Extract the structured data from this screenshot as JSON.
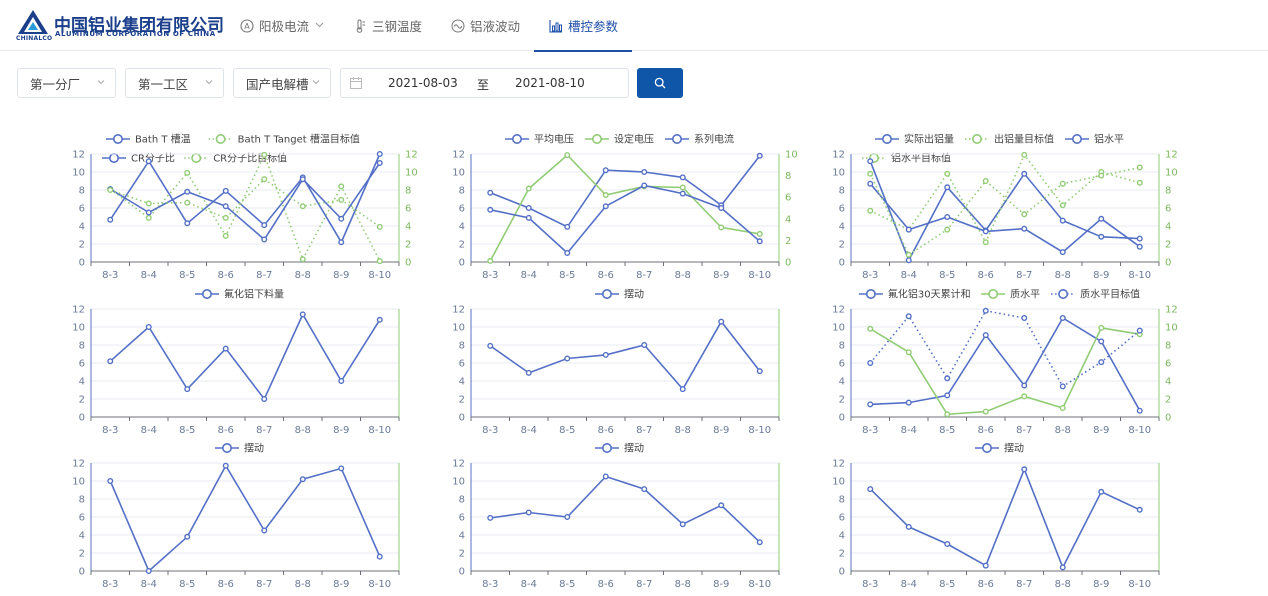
{
  "brand": {
    "name_cn": "中国铝业集团有限公司",
    "name_en": "ALUMINUM CORPORATION OF CHINA",
    "mark_text": "CHINALCO"
  },
  "nav": {
    "tabs": [
      {
        "label": "阳极电流",
        "icon": "anode-icon",
        "dropdown": true,
        "active": false
      },
      {
        "label": "三钢温度",
        "icon": "thermometer-icon",
        "dropdown": false,
        "active": false
      },
      {
        "label": "铝液波动",
        "icon": "wave-icon",
        "dropdown": false,
        "active": false
      },
      {
        "label": "槽控参数",
        "icon": "bar-chart-icon",
        "dropdown": false,
        "active": true
      }
    ]
  },
  "filters": {
    "factory": "第一分厂",
    "workshop": "第一工区",
    "cell": "国产电解槽",
    "date_start": "2021-08-03",
    "date_sep": "至",
    "date_end": "2021-08-10"
  },
  "colors": {
    "primary": "#1e4fa8",
    "series_blue": "#5470c6",
    "series_green": "#91cc75",
    "button": "#0f55a8"
  },
  "chart_data": [
    {
      "type": "line",
      "categories": [
        "8-3",
        "8-4",
        "8-5",
        "8-6",
        "8-7",
        "8-8",
        "8-9",
        "8-10"
      ],
      "ylim_left": [
        0,
        12
      ],
      "ylim_right": [
        0,
        12
      ],
      "yticks_left": [
        "0",
        "2",
        "4",
        "6",
        "8",
        "10",
        "12"
      ],
      "yticks_right": [
        "0",
        "2",
        "4",
        "6",
        "8",
        "10",
        "12"
      ],
      "series": [
        {
          "name": "Bath T 槽温",
          "axis": "left",
          "style": "solid",
          "color": "blue",
          "values": [
            4.7,
            11.2,
            4.3,
            7.9,
            4.1,
            9.4,
            2.2,
            12.0
          ]
        },
        {
          "name": "Bath T Tanget 槽温目标值",
          "axis": "right",
          "style": "dotted",
          "color": "green",
          "values": [
            8.1,
            4.9,
            9.9,
            2.9,
            11.9,
            0.3,
            8.4,
            0.1
          ]
        },
        {
          "name": "CR分子比",
          "axis": "left",
          "style": "solid",
          "color": "blue",
          "values": [
            8.1,
            5.5,
            7.8,
            6.2,
            2.5,
            9.2,
            4.8,
            11.0
          ]
        },
        {
          "name": "CR分子比目标值",
          "axis": "right",
          "style": "dotted",
          "color": "green",
          "values": [
            8.0,
            6.5,
            6.6,
            4.9,
            9.2,
            6.2,
            6.9,
            3.9
          ]
        }
      ]
    },
    {
      "type": "line",
      "categories": [
        "8-3",
        "8-4",
        "8-5",
        "8-6",
        "8-7",
        "8-8",
        "8-9",
        "8-10"
      ],
      "ylim_left": [
        0,
        12
      ],
      "ylim_right": [
        0,
        10
      ],
      "yticks_left": [
        "0",
        "2",
        "4",
        "6",
        "8",
        "10",
        "12"
      ],
      "yticks_right": [
        "0",
        "2",
        "4",
        "6",
        "8",
        "10"
      ],
      "series": [
        {
          "name": "平均电压",
          "axis": "left",
          "style": "solid",
          "color": "blue",
          "values": [
            7.7,
            6.0,
            3.9,
            10.2,
            10.0,
            9.4,
            6.3,
            11.8
          ]
        },
        {
          "name": "设定电压",
          "axis": "right",
          "style": "solid",
          "color": "green",
          "values": [
            0.1,
            6.8,
            9.9,
            6.2,
            7.0,
            6.9,
            3.2,
            2.6
          ]
        },
        {
          "name": "系列电流",
          "axis": "left",
          "style": "solid",
          "color": "blue",
          "values": [
            5.8,
            4.9,
            1.0,
            6.2,
            8.5,
            7.6,
            6.0,
            2.3
          ]
        }
      ]
    },
    {
      "type": "line",
      "categories": [
        "8-3",
        "8-4",
        "8-5",
        "8-6",
        "8-7",
        "8-8",
        "8-9",
        "8-10"
      ],
      "ylim_left": [
        0,
        12
      ],
      "ylim_right": [
        0,
        12
      ],
      "yticks_left": [
        "0",
        "2",
        "4",
        "6",
        "8",
        "10",
        "12"
      ],
      "yticks_right": [
        "0",
        "2",
        "4",
        "6",
        "8",
        "10",
        "12"
      ],
      "series": [
        {
          "name": "实际出铝量",
          "axis": "left",
          "style": "solid",
          "color": "blue",
          "values": [
            11.2,
            0.2,
            8.3,
            3.5,
            9.8,
            4.6,
            2.8,
            2.6
          ]
        },
        {
          "name": "出铝量目标值",
          "axis": "right",
          "style": "dotted",
          "color": "green",
          "values": [
            5.7,
            3.6,
            9.8,
            2.2,
            11.9,
            6.3,
            10.0,
            8.8
          ]
        },
        {
          "name": "铝水平",
          "axis": "left",
          "style": "solid",
          "color": "blue",
          "values": [
            8.7,
            3.6,
            5.0,
            3.4,
            3.7,
            1.1,
            4.8,
            1.7
          ]
        },
        {
          "name": "铝水平目标值",
          "axis": "right",
          "style": "dotted",
          "color": "green",
          "values": [
            9.8,
            0.8,
            3.6,
            9.0,
            5.3,
            8.7,
            9.6,
            10.5
          ]
        }
      ]
    },
    {
      "type": "line",
      "categories": [
        "8-3",
        "8-4",
        "8-5",
        "8-6",
        "8-7",
        "8-8",
        "8-9",
        "8-10"
      ],
      "ylim_left": [
        0,
        12
      ],
      "ylim_right": [
        0,
        12
      ],
      "yticks_left": [
        "0",
        "2",
        "4",
        "6",
        "8",
        "10",
        "12"
      ],
      "yticks_right": [],
      "series": [
        {
          "name": "氟化铝下料量",
          "axis": "left",
          "style": "solid",
          "color": "blue",
          "values": [
            6.2,
            10.0,
            3.1,
            7.6,
            2.0,
            11.4,
            4.0,
            10.8
          ]
        }
      ]
    },
    {
      "type": "line",
      "categories": [
        "8-3",
        "8-4",
        "8-5",
        "8-6",
        "8-7",
        "8-8",
        "8-9",
        "8-10"
      ],
      "ylim_left": [
        0,
        12
      ],
      "ylim_right": [
        0,
        12
      ],
      "yticks_left": [
        "0",
        "2",
        "4",
        "6",
        "8",
        "10",
        "12"
      ],
      "yticks_right": [],
      "series": [
        {
          "name": "摆动",
          "axis": "left",
          "style": "solid",
          "color": "blue",
          "values": [
            7.9,
            4.9,
            6.5,
            6.9,
            8.0,
            3.1,
            10.6,
            5.1
          ]
        }
      ]
    },
    {
      "type": "line",
      "categories": [
        "8-3",
        "8-4",
        "8-5",
        "8-6",
        "8-7",
        "8-8",
        "8-9",
        "8-10"
      ],
      "ylim_left": [
        0,
        12
      ],
      "ylim_right": [
        0,
        12
      ],
      "yticks_left": [
        "0",
        "2",
        "4",
        "6",
        "8",
        "10",
        "12"
      ],
      "yticks_right": [
        "0",
        "2",
        "4",
        "6",
        "8",
        "10",
        "12"
      ],
      "series": [
        {
          "name": "氟化铝30天累计和",
          "axis": "left",
          "style": "solid",
          "color": "blue",
          "values": [
            1.4,
            1.6,
            2.4,
            9.1,
            3.5,
            11.0,
            8.4,
            0.7
          ]
        },
        {
          "name": "质水平",
          "axis": "right",
          "style": "solid",
          "color": "green",
          "values": [
            9.8,
            7.2,
            0.3,
            0.6,
            2.3,
            1.0,
            9.9,
            9.2
          ]
        },
        {
          "name": "质水平目标值",
          "axis": "right",
          "style": "dotted",
          "color": "blue",
          "values": [
            6.0,
            11.2,
            4.3,
            11.8,
            11.0,
            3.4,
            6.1,
            9.6
          ]
        }
      ]
    },
    {
      "type": "line",
      "categories": [
        "8-3",
        "8-4",
        "8-5",
        "8-6",
        "8-7",
        "8-8",
        "8-9",
        "8-10"
      ],
      "ylim_left": [
        0,
        12
      ],
      "ylim_right": [
        0,
        12
      ],
      "yticks_left": [
        "0",
        "2",
        "4",
        "6",
        "8",
        "10",
        "12"
      ],
      "yticks_right": [],
      "series": [
        {
          "name": "摆动",
          "axis": "left",
          "style": "solid",
          "color": "blue",
          "values": [
            10.0,
            0.0,
            3.8,
            11.7,
            4.5,
            10.2,
            11.4,
            1.6
          ]
        }
      ]
    },
    {
      "type": "line",
      "categories": [
        "8-3",
        "8-4",
        "8-5",
        "8-6",
        "8-7",
        "8-8",
        "8-9",
        "8-10"
      ],
      "ylim_left": [
        0,
        12
      ],
      "ylim_right": [
        0,
        12
      ],
      "yticks_left": [
        "0",
        "2",
        "4",
        "6",
        "8",
        "10",
        "12"
      ],
      "yticks_right": [],
      "series": [
        {
          "name": "摆动",
          "axis": "left",
          "style": "solid",
          "color": "blue",
          "values": [
            5.9,
            6.5,
            6.0,
            10.5,
            9.1,
            5.2,
            7.3,
            3.2
          ]
        }
      ]
    },
    {
      "type": "line",
      "categories": [
        "8-3",
        "8-4",
        "8-5",
        "8-6",
        "8-7",
        "8-8",
        "8-9",
        "8-10"
      ],
      "ylim_left": [
        0,
        12
      ],
      "ylim_right": [
        0,
        12
      ],
      "yticks_left": [
        "0",
        "2",
        "4",
        "6",
        "8",
        "10",
        "12"
      ],
      "yticks_right": [],
      "series": [
        {
          "name": "摆动",
          "axis": "left",
          "style": "solid",
          "color": "blue",
          "values": [
            9.1,
            4.9,
            3.0,
            0.6,
            11.3,
            0.4,
            8.8,
            6.8
          ]
        }
      ]
    }
  ]
}
